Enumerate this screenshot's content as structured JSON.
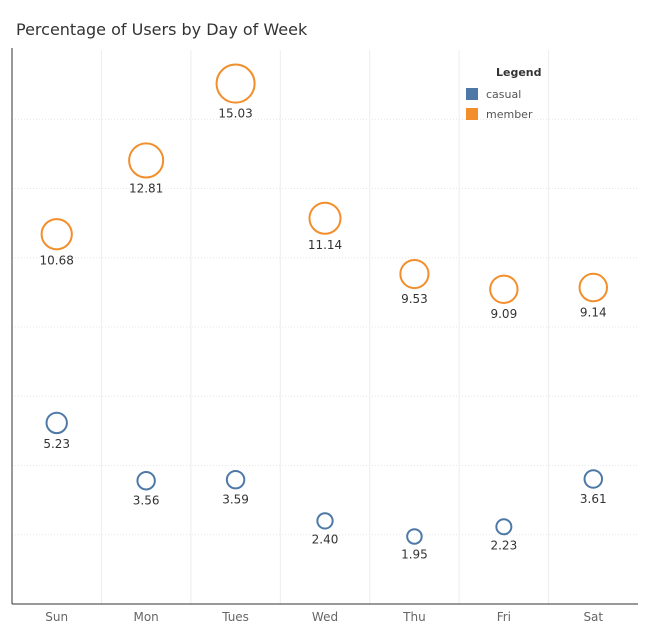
{
  "title": "Percentage of Users by Day of Week",
  "chart_data": {
    "type": "scatter",
    "title": "Percentage of Users by Day of Week",
    "categories": [
      "Sun",
      "Mon",
      "Tues",
      "Wed",
      "Thu",
      "Fri",
      "Sat"
    ],
    "series": [
      {
        "name": "casual",
        "color": "#4e79a7",
        "values": [
          5.23,
          3.56,
          3.59,
          2.4,
          1.95,
          2.23,
          3.61
        ]
      },
      {
        "name": "member",
        "color": "#f28e2b",
        "values": [
          10.68,
          12.81,
          15.03,
          11.14,
          9.53,
          9.09,
          9.14
        ]
      }
    ],
    "marker_size_encodes": "value",
    "xlabel": "",
    "ylabel": "",
    "ylim": [
      0,
      16
    ],
    "grid": true,
    "legend": {
      "title": "Legend",
      "position": "top-right",
      "items": [
        "casual",
        "member"
      ]
    }
  }
}
